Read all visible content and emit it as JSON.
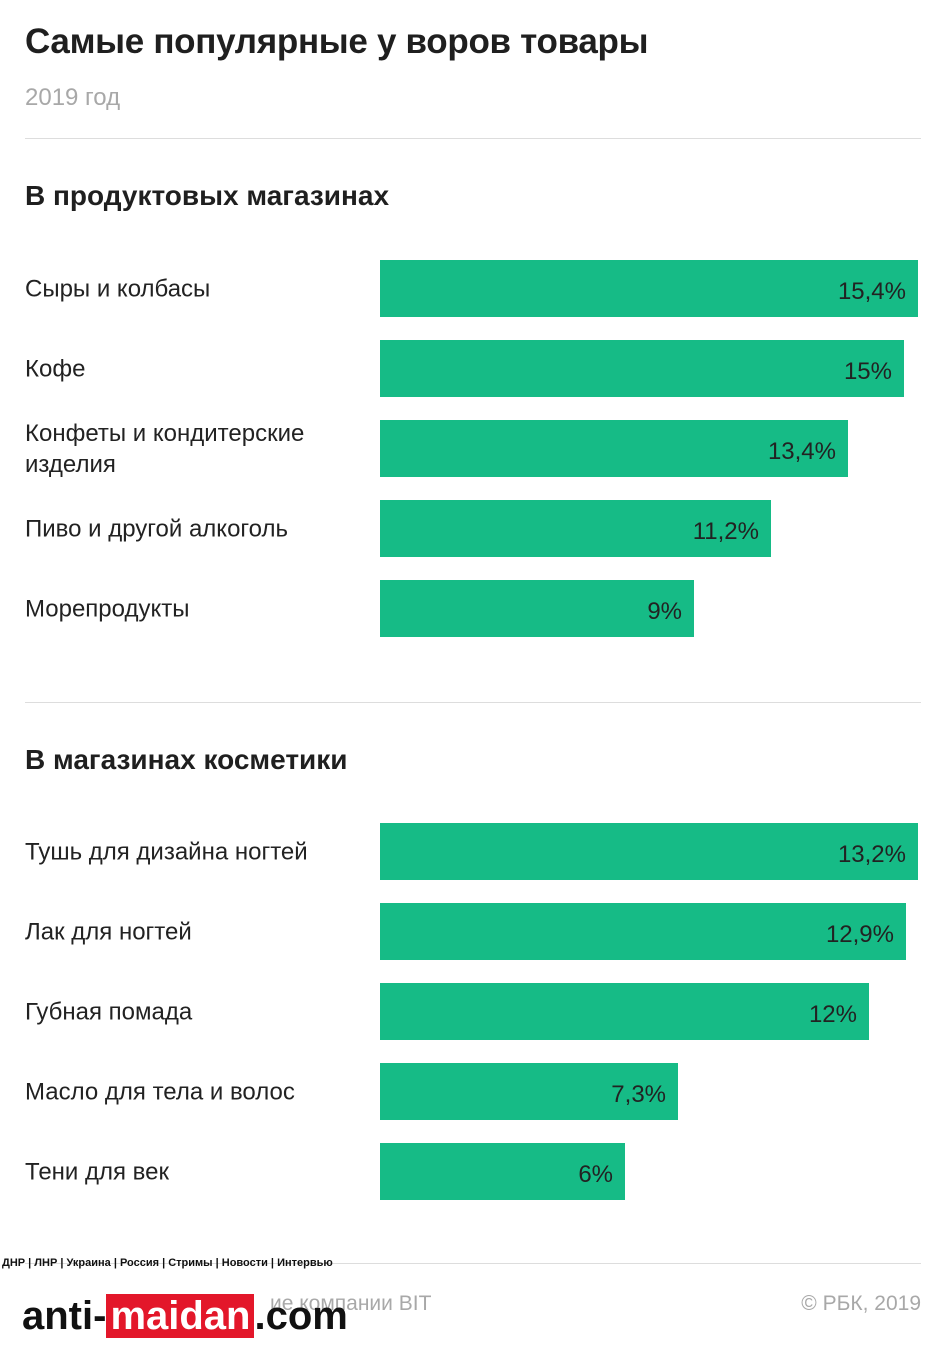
{
  "header": {
    "title": "Самые популярные у воров товары",
    "subtitle": "2019 год"
  },
  "colors": {
    "bar": "#16bb86",
    "rule": "#dddddd"
  },
  "chart_data": [
    {
      "type": "bar",
      "orientation": "horizontal",
      "title": "В продуктовых магазинах",
      "categories": [
        "Сыры и колбасы",
        "Кофе",
        "Конфеты и кондитерские изделия",
        "Пиво и другой алкоголь",
        "Морепродукты"
      ],
      "values": [
        15.4,
        15,
        13.4,
        11.2,
        9
      ],
      "value_labels": [
        "15,4%",
        "15%",
        "13,4%",
        "11,2%",
        "9%"
      ],
      "xlim": [
        0,
        15.4
      ]
    },
    {
      "type": "bar",
      "orientation": "horizontal",
      "title": "В магазинах косметики",
      "categories": [
        "Тушь для дизайна ногтей",
        "Лак для ногтей",
        "Губная помада",
        "Масло для тела и волос",
        "Тени для век"
      ],
      "values": [
        13.2,
        12.9,
        12,
        7.3,
        6
      ],
      "value_labels": [
        "13,2%",
        "12,9%",
        "12%",
        "7,3%",
        "6%"
      ],
      "xlim": [
        0,
        13.2
      ]
    }
  ],
  "footer": {
    "source": "ие компании BIT",
    "copyright": "© РБК, 2019"
  },
  "watermark": {
    "nav": "ДНР | ЛНР | Украина | Россия | Стримы | Новости | Интервью",
    "logo_part1": "anti-",
    "logo_part2": "maidan",
    "logo_part3": ".com"
  }
}
